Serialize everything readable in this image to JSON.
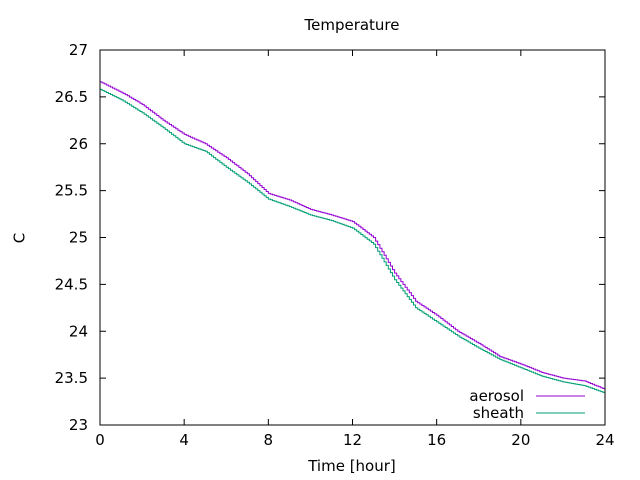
{
  "chart_data": {
    "type": "line",
    "title": "Temperature",
    "xlabel": "Time [hour]",
    "ylabel": "C",
    "xlim": [
      0,
      24
    ],
    "ylim": [
      23,
      27
    ],
    "x_ticks": [
      0,
      4,
      8,
      12,
      16,
      20,
      24
    ],
    "y_ticks": [
      23,
      23.5,
      24,
      24.5,
      25,
      25.5,
      26,
      26.5,
      27
    ],
    "grid": false,
    "legend_position": "bottom-right",
    "series": [
      {
        "name": "aerosol",
        "color": "#9400d3",
        "x": [
          0,
          1,
          2,
          3,
          4,
          5,
          6,
          7,
          8,
          9,
          10,
          11,
          12,
          13,
          14,
          15,
          16,
          17,
          18,
          19,
          20,
          21,
          22,
          23,
          24
        ],
        "y": [
          26.66,
          26.55,
          26.42,
          26.25,
          26.1,
          26.0,
          25.85,
          25.68,
          25.47,
          25.4,
          25.3,
          25.24,
          25.17,
          25.0,
          24.62,
          24.32,
          24.17,
          24.0,
          23.87,
          23.73,
          23.65,
          23.56,
          23.5,
          23.47,
          23.38
        ]
      },
      {
        "name": "sheath",
        "color": "#009e73",
        "x": [
          0,
          1,
          2,
          3,
          4,
          5,
          6,
          7,
          8,
          9,
          10,
          11,
          12,
          13,
          14,
          15,
          16,
          17,
          18,
          19,
          20,
          21,
          22,
          23,
          24
        ],
        "y": [
          26.58,
          26.47,
          26.33,
          26.17,
          26.0,
          25.92,
          25.75,
          25.59,
          25.41,
          25.33,
          25.24,
          25.18,
          25.1,
          24.93,
          24.55,
          24.25,
          24.1,
          23.95,
          23.82,
          23.7,
          23.61,
          23.52,
          23.46,
          23.42,
          23.34
        ]
      }
    ]
  }
}
